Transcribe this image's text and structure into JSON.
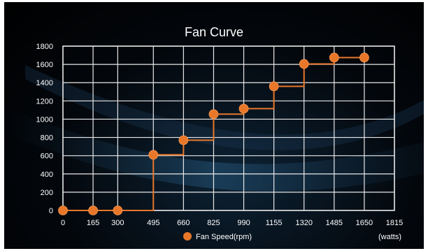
{
  "chart_data": {
    "type": "line",
    "title": "Fan Curve",
    "xlabel": "",
    "ylabel": "",
    "x_unit": "(watts)",
    "xlim": [
      0,
      1815
    ],
    "ylim": [
      0,
      1800
    ],
    "x_ticks": [
      0,
      165,
      300,
      495,
      660,
      825,
      990,
      1155,
      1320,
      1485,
      1650,
      1815
    ],
    "y_ticks": [
      0,
      200,
      400,
      600,
      800,
      1000,
      1200,
      1400,
      1600,
      1800
    ],
    "grid": true,
    "step": true,
    "legend_position": "bottom",
    "series": [
      {
        "name": "Fan Speed(rpm)",
        "color": "#e8772a",
        "x": [
          0,
          165,
          300,
          495,
          660,
          825,
          990,
          1155,
          1320,
          1485,
          1650
        ],
        "y": [
          0,
          0,
          0,
          610,
          770,
          1055,
          1115,
          1360,
          1605,
          1675,
          1675
        ]
      }
    ]
  },
  "colors": {
    "grid": "#e8e8e8",
    "axis_text": "#ffffff",
    "background": "#000000"
  }
}
